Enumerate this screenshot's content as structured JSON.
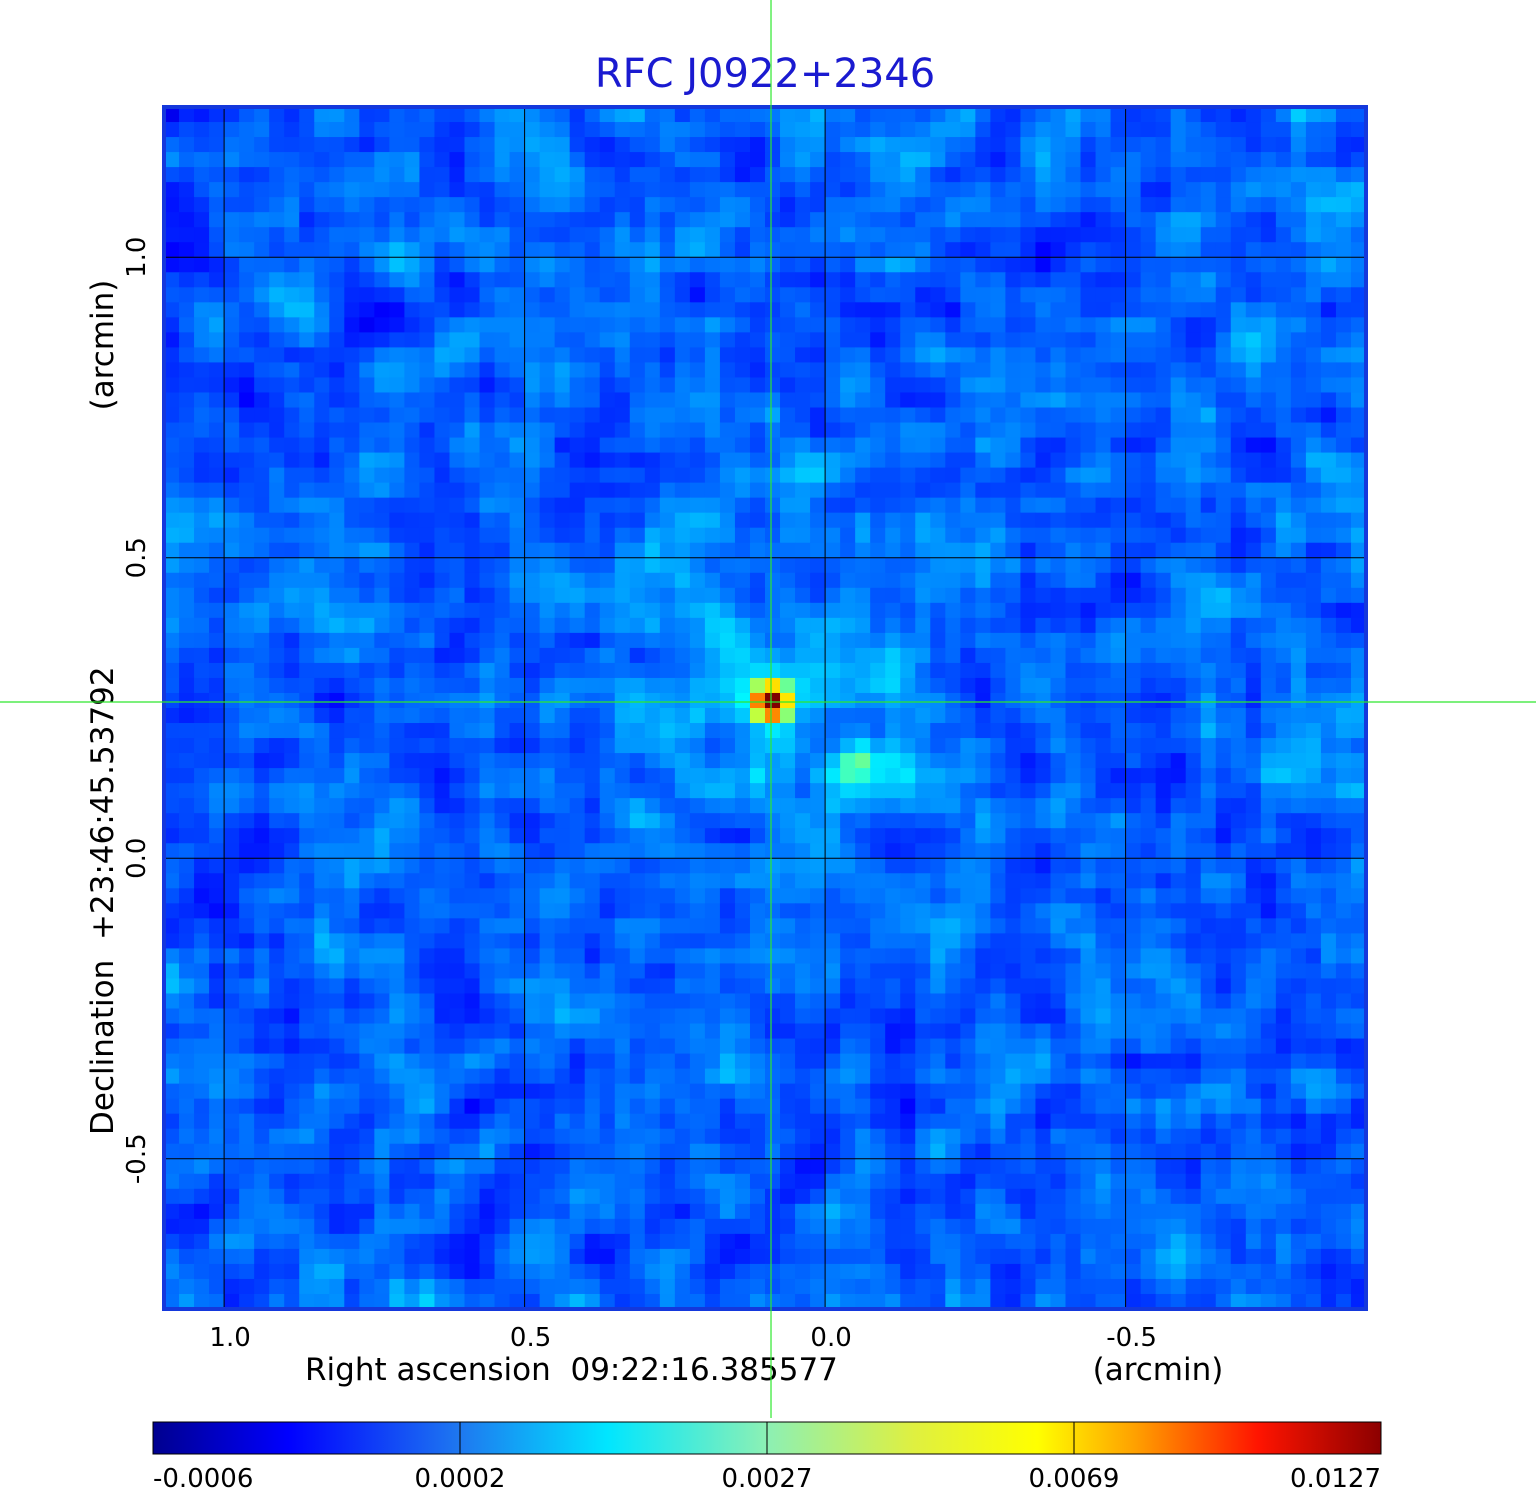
{
  "chart_data": {
    "type": "heatmap",
    "title": "RFC J0922+2346",
    "xlabel": "Right ascension  09:22:16.385577",
    "xunit": "(arcmin)",
    "ylabel": "Declination  +23:46:45.53792",
    "yunit": "(arcmin)",
    "x_ticks": [
      "1.0",
      "0.5",
      "0.0",
      "-0.5"
    ],
    "y_ticks": [
      "1.0",
      "0.5",
      "0.0",
      "-0.5"
    ],
    "xlim": [
      1.1,
      -0.9
    ],
    "ylim": [
      -0.75,
      1.25
    ],
    "grid": true,
    "crosshair": {
      "x": 0.09,
      "y": 0.26
    },
    "sources": [
      {
        "x": 0.09,
        "y": 0.26,
        "peak": 0.0127
      },
      {
        "x": -0.05,
        "y": 0.16,
        "peak": 0.0027
      }
    ],
    "colorbar": {
      "labels": [
        "-0.0006",
        "0.0002",
        "0.0027",
        "0.0069",
        "0.0127"
      ],
      "colormap": "jet"
    },
    "colors": {
      "title": "#1a1ad0",
      "frame": "#1438dc",
      "crosshair": "#2ee82e",
      "grid": "#000000"
    }
  }
}
